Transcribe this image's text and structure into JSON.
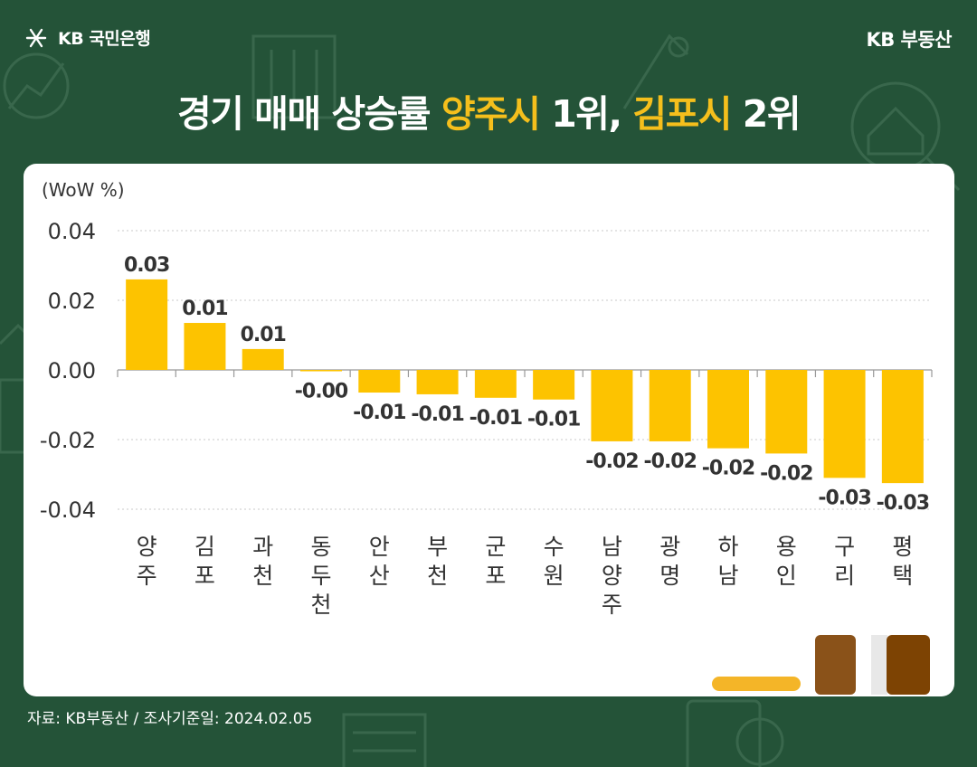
{
  "header": {
    "bank_logo": "KB 국민은행",
    "brand": "KB 부동산",
    "title_parts": [
      "경기 매매 상승률 ",
      "양주시",
      " 1위, ",
      "김포시",
      " 2위"
    ]
  },
  "colors": {
    "background": "#245338",
    "bar": "#FDC300",
    "highlight": "#F5BF1C"
  },
  "chart_data": {
    "type": "bar",
    "unit_label": "(WoW %)",
    "categories": [
      "양주",
      "김포",
      "과천",
      "동두천",
      "안산",
      "부천",
      "군포",
      "수원",
      "남양주",
      "광명",
      "하남",
      "용인",
      "구리",
      "평택"
    ],
    "values": [
      0.026,
      0.0135,
      0.006,
      -0.0003,
      -0.0065,
      -0.007,
      -0.008,
      -0.0085,
      -0.0205,
      -0.0205,
      -0.0225,
      -0.024,
      -0.031,
      -0.0325
    ],
    "data_labels": [
      "0.03",
      "0.01",
      "0.01",
      "-0.00",
      "-0.01",
      "-0.01",
      "-0.01",
      "-0.01",
      "-0.02",
      "-0.02",
      "-0.02",
      "-0.02",
      "-0.03",
      "-0.03"
    ],
    "yticks": [
      "0.04",
      "0.02",
      "0.00",
      "-0.02",
      "-0.04"
    ],
    "ylim": [
      -0.04,
      0.04
    ],
    "grid": true,
    "legend": "none"
  },
  "footer": {
    "source": "자료: KB부동산 / 조사기준일: 2024.02.05"
  }
}
